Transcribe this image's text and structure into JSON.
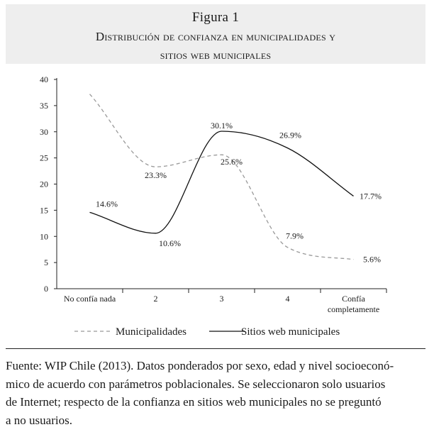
{
  "header": {
    "figure_label": "Figura 1",
    "title_line1": "Distribución de confianza en municipalidades y",
    "title_line2": "sitios web municipales"
  },
  "chart_data": {
    "type": "line",
    "categories": [
      "No confía nada",
      "2",
      "3",
      "4",
      "Confía completamente"
    ],
    "category_label_lines": [
      [
        "No confía nada"
      ],
      [
        "2"
      ],
      [
        "3"
      ],
      [
        "4"
      ],
      [
        "Confía",
        "completamente"
      ]
    ],
    "ylim": [
      0,
      40
    ],
    "yticks": [
      "0",
      "5",
      "10",
      "15",
      "20",
      "25",
      "30",
      "35",
      "40"
    ],
    "xlabel": "",
    "ylabel": "",
    "grid": false,
    "legend_position": "bottom",
    "series": [
      {
        "name": "Municipalidades",
        "style": "dashed",
        "color": "#999999",
        "values": [
          37.2,
          23.3,
          25.6,
          7.9,
          5.6
        ],
        "labels": [
          "",
          "23.3%",
          "25.6%",
          "7.9%",
          "5.6%"
        ]
      },
      {
        "name": "Sitios web municipales",
        "style": "solid",
        "color": "#111111",
        "values": [
          14.6,
          10.6,
          30.1,
          26.9,
          17.7
        ],
        "labels": [
          "14.6%",
          "10.6%",
          "30.1%",
          "26.9%",
          "17.7%"
        ]
      }
    ]
  },
  "source_lines": [
    "Fuente: WIP Chile (2013). Datos ponderados por sexo, edad y nivel socioeconó-",
    "mico de acuerdo con parámetros poblacionales. Se seleccionaron solo usuarios",
    "de Internet; respecto de la confianza en sitios web municipales no se preguntó",
    "a no usuarios."
  ]
}
